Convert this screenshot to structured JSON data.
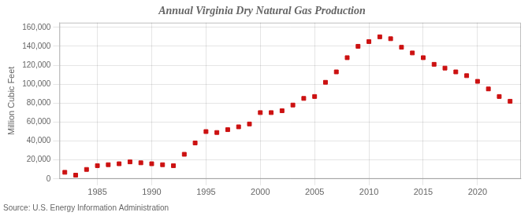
{
  "chart_data": {
    "type": "scatter",
    "title": "Annual Virginia Dry Natural Gas Production",
    "ylabel": "Million Cubic Feet",
    "source": "Source: U.S. Energy Information Administration",
    "color": "#cc1111",
    "marker": "square",
    "x": [
      1982,
      1983,
      1984,
      1985,
      1986,
      1987,
      1988,
      1989,
      1990,
      1991,
      1992,
      1993,
      1994,
      1995,
      1996,
      1997,
      1998,
      1999,
      2000,
      2001,
      2002,
      2003,
      2004,
      2005,
      2006,
      2007,
      2008,
      2009,
      2010,
      2011,
      2012,
      2013,
      2014,
      2015,
      2016,
      2017,
      2018,
      2019,
      2020,
      2021,
      2022,
      2023
    ],
    "values": [
      7000,
      4000,
      10000,
      14000,
      15000,
      16000,
      18000,
      17000,
      16000,
      15000,
      14000,
      26000,
      38000,
      50000,
      49000,
      52000,
      55000,
      58000,
      70000,
      70000,
      72000,
      78000,
      85000,
      87000,
      102000,
      113000,
      128000,
      140000,
      145000,
      150000,
      148000,
      139000,
      133000,
      128000,
      121000,
      117000,
      113000,
      109000,
      103000,
      95000,
      87000,
      82000
    ],
    "xlim": [
      1981.5,
      2024
    ],
    "xticks": [
      1985,
      1990,
      1995,
      2000,
      2005,
      2010,
      2015,
      2020
    ],
    "ylim": [
      0,
      165000
    ],
    "yticks": [
      0,
      {
        "value": 20000,
        "label": "20,000"
      },
      {
        "value": 40000,
        "label": "40,000"
      },
      {
        "value": 60000,
        "label": "60,000"
      },
      {
        "value": 80000,
        "label": "80,000"
      },
      {
        "value": 100000,
        "label": "100,000"
      },
      {
        "value": 120000,
        "label": "120,000"
      },
      {
        "value": 140000,
        "label": "140,000"
      },
      {
        "value": 160000,
        "label": "160,000"
      }
    ],
    "grid": true
  }
}
